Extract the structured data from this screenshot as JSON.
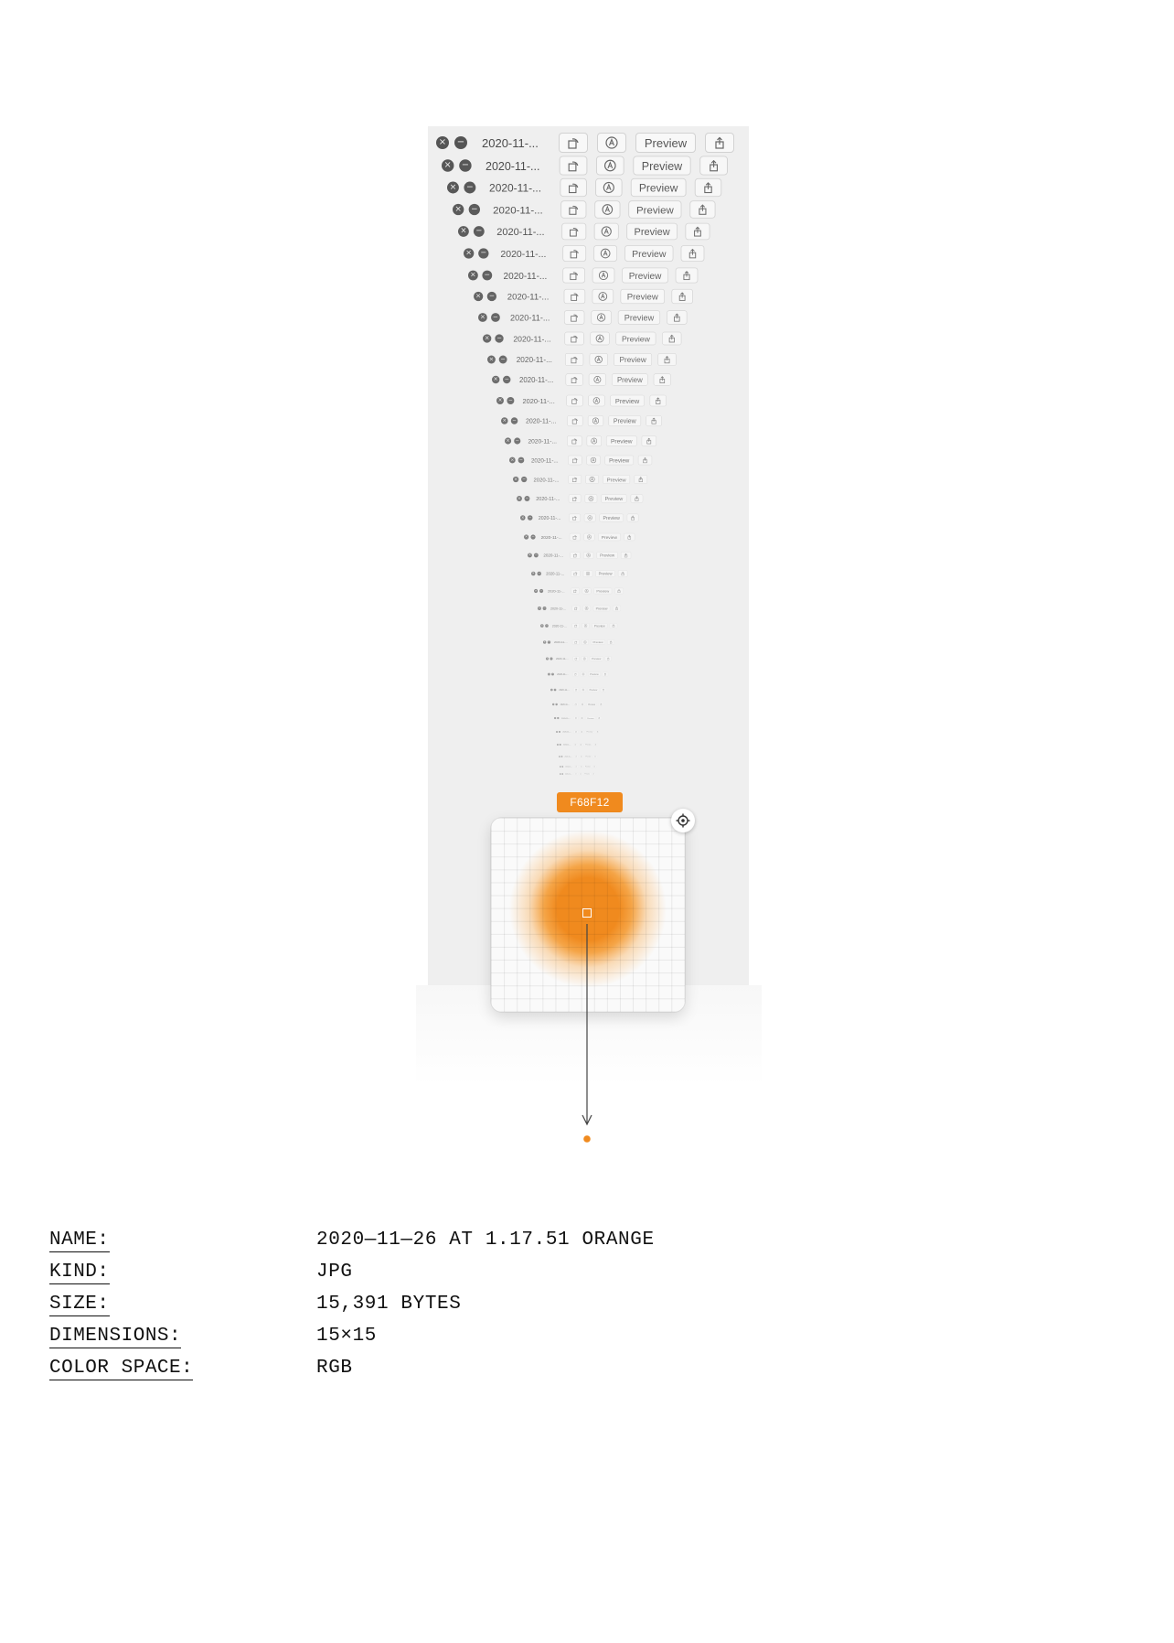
{
  "window_row": {
    "close_icon": "close-icon",
    "minimize_icon": "minimize-icon",
    "file_name": "2020-11-...",
    "rotate_icon": "rotate-icon",
    "markup_icon": "markup-icon",
    "open_with_label": "Preview",
    "share_icon": "share-icon"
  },
  "picker": {
    "hex": "F68F12",
    "color": "#f08a1e",
    "target_icon": "crosshair-icon"
  },
  "metadata": {
    "rows": [
      {
        "label": "NAME:",
        "value": "2020—11—26 AT 1.17.51 ORANGE"
      },
      {
        "label": "KIND:",
        "value": "JPG"
      },
      {
        "label": "SIZE:",
        "value": "15,391 BYTES"
      },
      {
        "label": "DIMENSIONS:",
        "value": "15×15"
      },
      {
        "label": "COLOR SPACE:",
        "value": "RGB"
      }
    ]
  }
}
